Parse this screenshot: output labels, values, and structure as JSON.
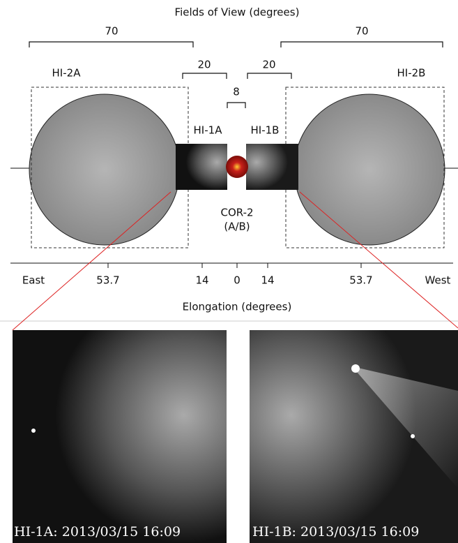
{
  "title": "Fields of View (degrees)",
  "brackets": [
    "70",
    "70",
    "20",
    "20",
    "8"
  ],
  "labels": {
    "hi2a": "HI-2A",
    "hi2b": "HI-2B",
    "hi1a": "HI-1A",
    "hi1b": "HI-1B",
    "cor2": "COR-2",
    "cor2_sub": "(A/B)"
  },
  "axis": {
    "ticks": [
      "East",
      "53.7",
      "14",
      "0",
      "14",
      "53.7",
      "West"
    ],
    "label": "Elongation (degrees)"
  },
  "panels": [
    {
      "caption": "HI-1A: 2013/03/15 16:09"
    },
    {
      "caption": "HI-1B: 2013/03/15 16:09"
    }
  ]
}
